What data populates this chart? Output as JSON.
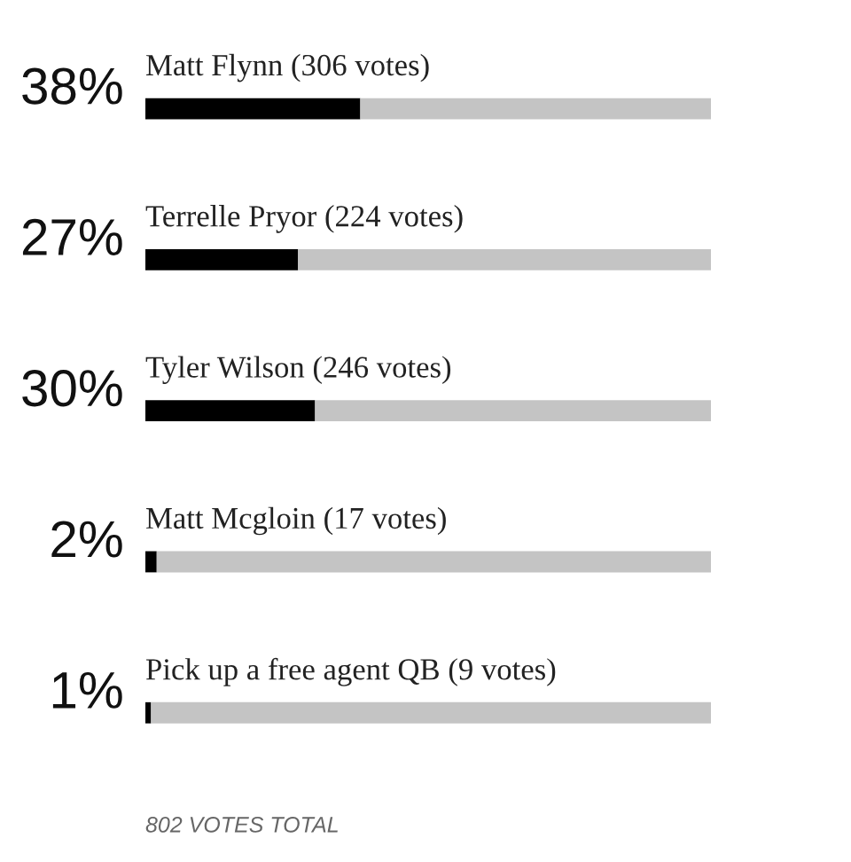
{
  "chart_data": {
    "type": "bar",
    "orientation": "horizontal",
    "stacked": true,
    "categories": [
      "Matt Flynn (306 votes)",
      "Terrelle Pryor (224 votes)",
      "Tyler Wilson (246 votes)",
      "Matt Mcgloin (17 votes)",
      "Pick up a free agent QB (9 votes)"
    ],
    "series": [
      {
        "color": "#000000",
        "values": [
          38,
          27,
          30,
          2,
          1
        ],
        "value_labels": [
          "38%",
          "27%",
          "30%",
          "2%",
          "1%"
        ]
      },
      {
        "color": "#c4c4c4",
        "values": [
          62,
          73,
          70,
          98,
          99
        ]
      }
    ],
    "xlim": [
      0,
      100
    ],
    "annotations": [
      "802 VOTES TOTAL"
    ]
  }
}
